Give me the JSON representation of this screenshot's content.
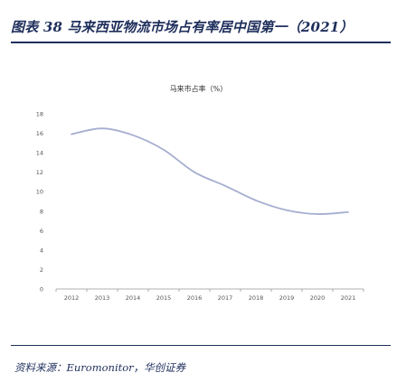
{
  "figure": {
    "title": "图表 38 马来西亚物流市场占有率居中国第一（2021）",
    "source": "资料来源：Euromonitor，华创证券"
  },
  "chart_data": {
    "type": "line",
    "title": "马来市占率（%）",
    "xlabel": "",
    "ylabel": "",
    "x": [
      "2012",
      "2013",
      "2014",
      "2015",
      "2016",
      "2017",
      "2018",
      "2019",
      "2020",
      "2021"
    ],
    "series": [
      {
        "values": [
          15.9,
          16.5,
          15.8,
          14.3,
          12.0,
          10.6,
          9.1,
          8.1,
          7.7,
          7.9
        ]
      }
    ],
    "ylim": [
      0,
      18
    ],
    "yticks": [
      0,
      2,
      4,
      6,
      8,
      10,
      12,
      14,
      16,
      18
    ],
    "grid": false,
    "colors": {
      "line": "#a6aed0",
      "axis": "#999999",
      "tick_text": "#555555",
      "accent": "#1f2f5c"
    }
  }
}
